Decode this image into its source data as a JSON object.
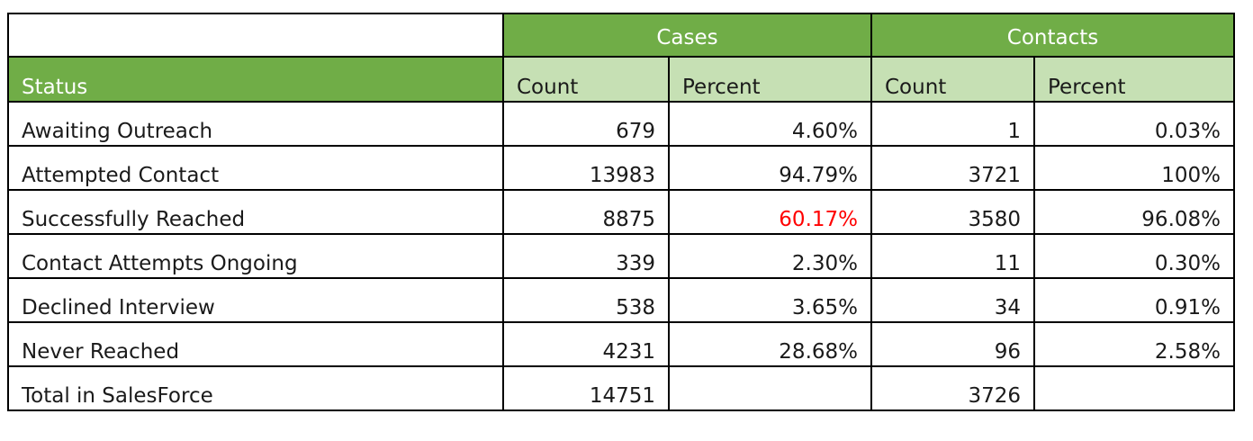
{
  "chart_data": {
    "type": "table",
    "groups": [
      "Cases",
      "Contacts"
    ],
    "columns": [
      "Status",
      "Count",
      "Percent",
      "Count",
      "Percent"
    ],
    "rows": [
      {
        "status": "Awaiting Outreach",
        "cases_count": "679",
        "cases_percent": "4.60%",
        "contacts_count": "1",
        "contacts_percent": "0.03%"
      },
      {
        "status": "Attempted Contact",
        "cases_count": "13983",
        "cases_percent": "94.79%",
        "contacts_count": "3721",
        "contacts_percent": "100%"
      },
      {
        "status": "Successfully Reached",
        "cases_count": "8875",
        "cases_percent": "60.17%",
        "contacts_count": "3580",
        "contacts_percent": "96.08%",
        "highlight": "cases_percent"
      },
      {
        "status": "Contact Attempts Ongoing",
        "cases_count": "339",
        "cases_percent": "2.30%",
        "contacts_count": "11",
        "contacts_percent": "0.30%"
      },
      {
        "status": "Declined Interview",
        "cases_count": "538",
        "cases_percent": "3.65%",
        "contacts_count": "34",
        "contacts_percent": "0.91%"
      },
      {
        "status": "Never Reached",
        "cases_count": "4231",
        "cases_percent": "28.68%",
        "contacts_count": "96",
        "contacts_percent": "2.58%"
      },
      {
        "status": "Total in SalesForce",
        "cases_count": "14751",
        "cases_percent": "",
        "contacts_count": "3726",
        "contacts_percent": ""
      }
    ]
  },
  "colors": {
    "header_green": "#70ad47",
    "subheader_green": "#c6e0b4",
    "highlight_red": "#ff0000",
    "border": "#000000"
  }
}
